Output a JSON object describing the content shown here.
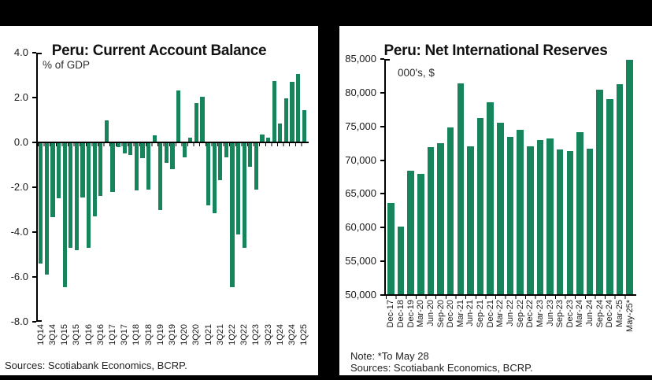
{
  "colors": {
    "bar_green": "#17855C",
    "frame_black": "#000000",
    "panel_white": "#FFFFFF",
    "text": "#1A1A1A"
  },
  "chart_data": [
    {
      "type": "bar",
      "title": "Peru: Current Account Balance",
      "unit_label": "% of GDP",
      "source": "Sources: Scotiabank Economics, BCRP.",
      "bar_color": "#17855C",
      "ylim": [
        -8,
        4
      ],
      "baseline": 0,
      "grid": false,
      "yticks": [
        {
          "value": 4,
          "label": "4.0"
        },
        {
          "value": 2,
          "label": "2.0"
        },
        {
          "value": 0,
          "label": "0.0"
        },
        {
          "value": -2,
          "label": "-2.0"
        },
        {
          "value": -4,
          "label": "-4.0"
        },
        {
          "value": -6,
          "label": "-6.0"
        },
        {
          "value": -8,
          "label": "-8.0"
        }
      ],
      "label_every": 2,
      "categories": [
        "1Q14",
        "2Q14",
        "3Q14",
        "4Q14",
        "1Q15",
        "2Q15",
        "3Q15",
        "4Q15",
        "1Q16",
        "2Q16",
        "3Q16",
        "4Q16",
        "1Q17",
        "2Q17",
        "3Q17",
        "4Q17",
        "1Q18",
        "2Q18",
        "3Q18",
        "4Q18",
        "1Q19",
        "2Q19",
        "3Q19",
        "4Q19",
        "1Q20",
        "2Q20",
        "3Q20",
        "4Q20",
        "1Q21",
        "2Q21",
        "3Q21",
        "4Q21",
        "1Q22",
        "2Q22",
        "3Q22",
        "4Q22",
        "1Q23",
        "2Q23",
        "3Q23",
        "4Q23",
        "1Q24",
        "2Q24",
        "3Q24",
        "4Q24",
        "1Q25"
      ],
      "values": [
        -5.4,
        -5.9,
        -3.35,
        -2.5,
        -6.45,
        -4.7,
        -4.8,
        -2.45,
        -4.7,
        -3.3,
        -2.4,
        1.0,
        -2.2,
        -0.2,
        -0.5,
        -0.55,
        -2.15,
        -0.7,
        -2.1,
        0.3,
        -3.0,
        -0.9,
        -1.2,
        2.3,
        -0.65,
        0.2,
        1.75,
        2.05,
        -2.8,
        -3.15,
        -1.7,
        -0.65,
        -6.45,
        -4.1,
        -4.7,
        -1.1,
        -2.1,
        0.35,
        0.2,
        2.75,
        0.85,
        1.95,
        2.7,
        3.05,
        1.45
      ]
    },
    {
      "type": "bar",
      "title": "Peru: Net International Reserves",
      "unit_label": "000's, $",
      "note": "Note: *To May 28",
      "source": "Sources: Scotiabank Economics, BCRP.",
      "bar_color": "#17855C",
      "ylim": [
        50000,
        85000
      ],
      "baseline": 50000,
      "grid": false,
      "yticks": [
        {
          "value": 85000,
          "label": "85,000"
        },
        {
          "value": 80000,
          "label": "80,000"
        },
        {
          "value": 75000,
          "label": "75,000"
        },
        {
          "value": 70000,
          "label": "70,000"
        },
        {
          "value": 65000,
          "label": "65,000"
        },
        {
          "value": 60000,
          "label": "60,000"
        },
        {
          "value": 55000,
          "label": "55,000"
        },
        {
          "value": 50000,
          "label": "50,000"
        }
      ],
      "label_every": 1,
      "categories": [
        "Dec-17",
        "Dec-18",
        "Dec-19",
        "Mar-20",
        "Jun-20",
        "Sep-20",
        "Dec-20",
        "Mar-21",
        "Jun-21",
        "Sep-21",
        "Dec-21",
        "Mar-22",
        "Jun-22",
        "Sep-22",
        "Dec-22",
        "Mar-23",
        "Jun-23",
        "Sep-23",
        "Dec-23",
        "Mar-24",
        "Jun-24",
        "Sep-24",
        "Dec-24",
        "Mar-25",
        "May-25*"
      ],
      "values": [
        63700,
        60200,
        68400,
        68000,
        71900,
        72500,
        74900,
        81400,
        72100,
        76300,
        78600,
        75600,
        73500,
        74500,
        72100,
        73000,
        73200,
        71600,
        71300,
        74200,
        71700,
        80500,
        79100,
        81300,
        84900
      ]
    }
  ]
}
